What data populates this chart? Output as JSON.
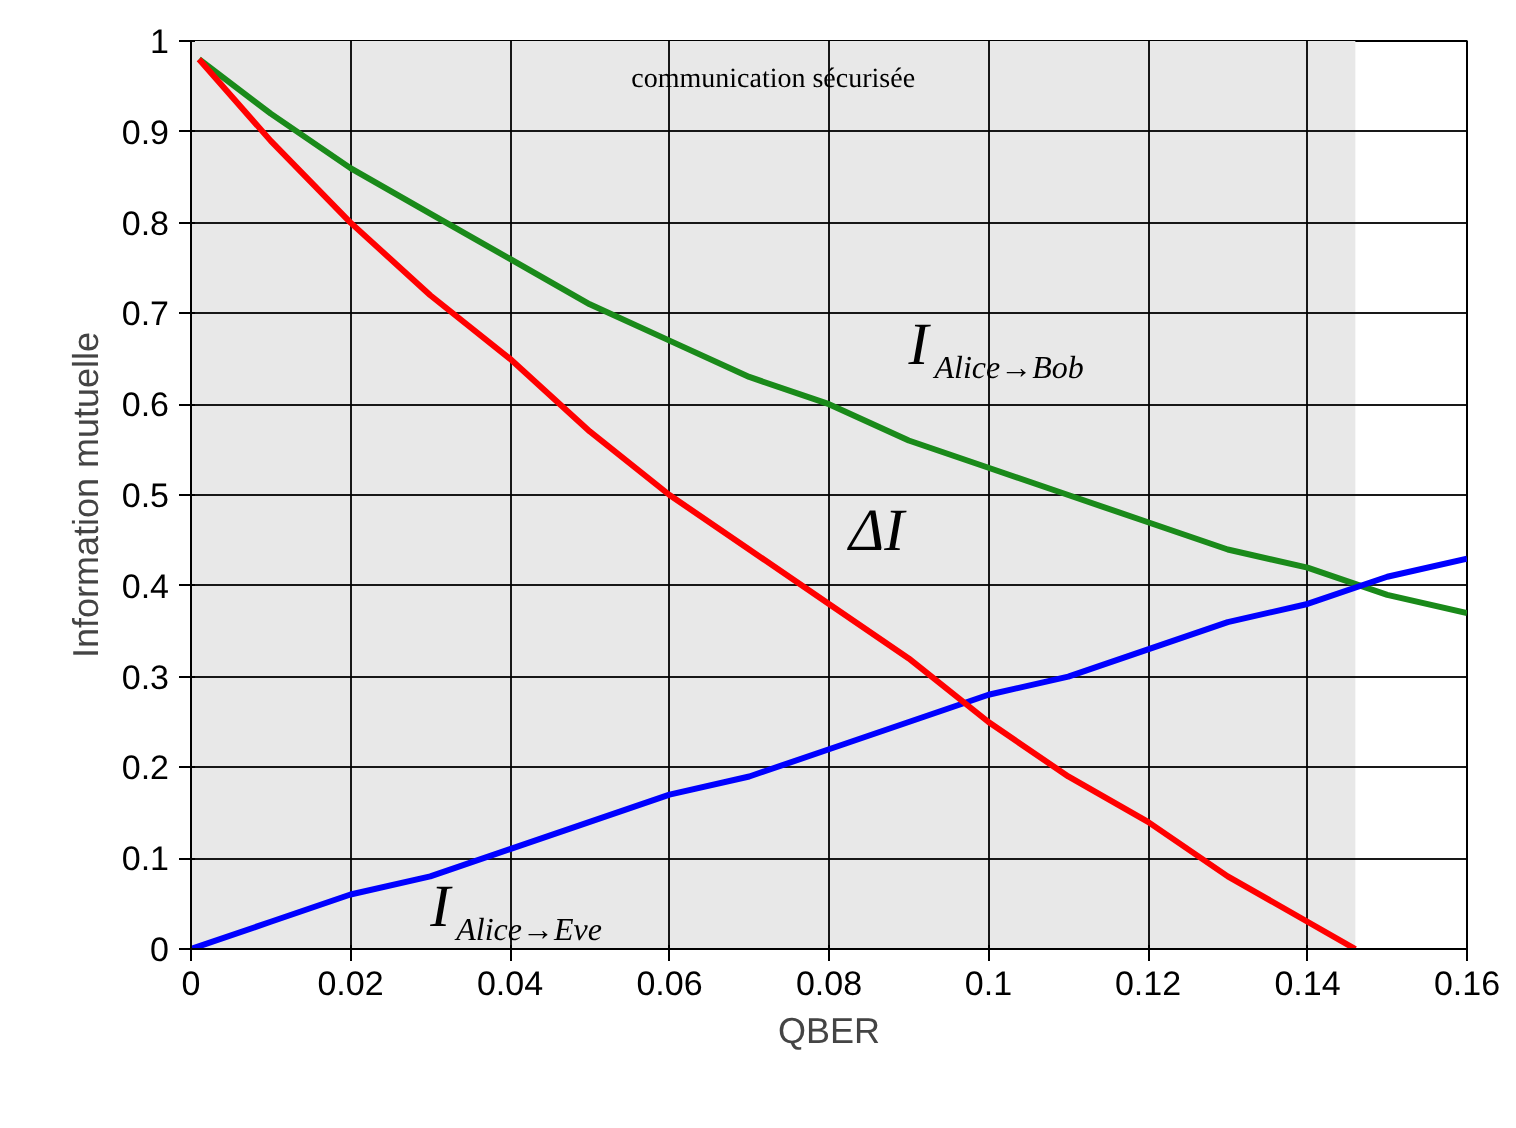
{
  "chart_data": {
    "type": "line",
    "xlabel": "QBER",
    "ylabel": "Information mutuelle",
    "x": [
      0.001,
      0.01,
      0.02,
      0.03,
      0.04,
      0.05,
      0.06,
      0.07,
      0.08,
      0.09,
      0.1,
      0.11,
      0.12,
      0.13,
      0.14,
      0.15,
      0.16
    ],
    "series": [
      {
        "name": "I$_{Alice→Bob}$",
        "color": "#1a8a1a",
        "values": [
          0.98,
          0.92,
          0.86,
          0.81,
          0.76,
          0.71,
          0.67,
          0.63,
          0.6,
          0.56,
          0.53,
          0.5,
          0.47,
          0.44,
          0.42,
          0.39,
          0.37
        ]
      },
      {
        "name": "I$_{Alice→Eve}$",
        "color": "#0000ff",
        "x": [
          0,
          0.01,
          0.02,
          0.03,
          0.04,
          0.05,
          0.06,
          0.07,
          0.08,
          0.09,
          0.1,
          0.11,
          0.12,
          0.13,
          0.14,
          0.15,
          0.16
        ],
        "values": [
          0,
          0.03,
          0.06,
          0.08,
          0.11,
          0.14,
          0.17,
          0.19,
          0.22,
          0.25,
          0.28,
          0.3,
          0.33,
          0.36,
          0.38,
          0.41,
          0.43
        ]
      },
      {
        "name": "ΔI",
        "color": "#ff0000",
        "x": [
          0.001,
          0.01,
          0.02,
          0.03,
          0.04,
          0.05,
          0.06,
          0.07,
          0.08,
          0.09,
          0.1,
          0.11,
          0.12,
          0.13,
          0.14,
          0.146
        ],
        "values": [
          0.98,
          0.89,
          0.8,
          0.72,
          0.65,
          0.57,
          0.5,
          0.44,
          0.38,
          0.32,
          0.25,
          0.19,
          0.14,
          0.08,
          0.03,
          0
        ]
      }
    ],
    "bands": [
      {
        "axis": "x",
        "from": 0,
        "to": 0.146,
        "label": "communication sécurisée",
        "color": "#e8e8e8"
      }
    ],
    "xlim": [
      0,
      0.16
    ],
    "ylim": [
      0,
      1
    ],
    "xticks": [
      0,
      0.02,
      0.04,
      0.06,
      0.08,
      0.1,
      0.12,
      0.14,
      0.16
    ],
    "yticks": [
      0,
      0.1,
      0.2,
      0.3,
      0.4,
      0.5,
      0.6,
      0.7,
      0.8,
      0.9,
      1
    ],
    "grid": true,
    "legend": false,
    "marker": "none",
    "line_style": "solid"
  }
}
